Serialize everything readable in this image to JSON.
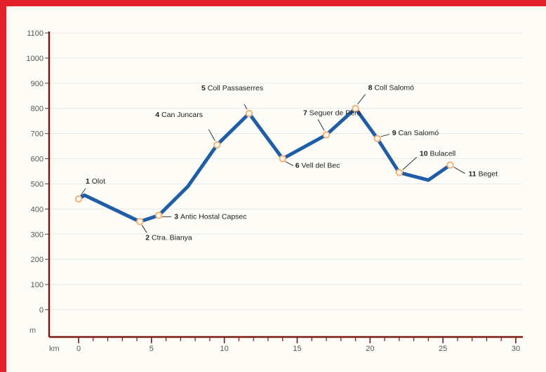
{
  "colors": {
    "frame": "#e3212a",
    "line": "#1f5da6",
    "axis": "#7a1a12",
    "marker": "#f2b27a",
    "grid": "#e6e6e6"
  },
  "chart_data": {
    "type": "line",
    "x_unit": "km",
    "y_unit": "m",
    "xlim": [
      0,
      30
    ],
    "ylim": [
      0,
      1100
    ],
    "y_ticks": [
      0,
      100,
      200,
      300,
      400,
      500,
      600,
      700,
      800,
      900,
      1000,
      1100
    ],
    "y_tick_labels": [
      "0",
      "100",
      "200",
      "300",
      "400",
      "500",
      "600",
      "700",
      "800",
      "900",
      "1000",
      "1100"
    ],
    "x_ticks": [
      0,
      5,
      10,
      15,
      20,
      25,
      30
    ],
    "x_tick_labels": [
      "0",
      "5",
      "10",
      "15",
      "20",
      "25",
      "30"
    ],
    "grid": true,
    "series": [
      {
        "x": [
          0,
          0.4,
          4.2,
          5.5,
          7.5,
          9.5,
          11.7,
          14.0,
          17.0,
          19.0,
          20.5,
          22.0,
          24.0,
          25.5
        ],
        "y": [
          440,
          455,
          350,
          375,
          490,
          655,
          780,
          600,
          695,
          800,
          680,
          545,
          515,
          575
        ]
      }
    ],
    "annotations": [
      {
        "num": "1",
        "label": "Olot",
        "x": 0,
        "y": 440
      },
      {
        "num": "2",
        "label": "Ctra. Bianya",
        "x": 4.2,
        "y": 350
      },
      {
        "num": "3",
        "label": "Antic Hostal Capsec",
        "x": 5.5,
        "y": 375
      },
      {
        "num": "4",
        "label": "Can Juncars",
        "x": 9.5,
        "y": 655
      },
      {
        "num": "5",
        "label": "Coll Passaserres",
        "x": 11.7,
        "y": 780
      },
      {
        "num": "6",
        "label": "Vell del Bec",
        "x": 14.0,
        "y": 600
      },
      {
        "num": "7",
        "label": "Seguer de Pera",
        "x": 17.0,
        "y": 695
      },
      {
        "num": "8",
        "label": "Coll Salomó",
        "x": 19.0,
        "y": 800
      },
      {
        "num": "9",
        "label": "Can Salomó",
        "x": 20.5,
        "y": 680
      },
      {
        "num": "10",
        "label": "Bulacell",
        "x": 22.0,
        "y": 545
      },
      {
        "num": "11",
        "label": "Beget",
        "x": 25.5,
        "y": 575
      }
    ]
  }
}
